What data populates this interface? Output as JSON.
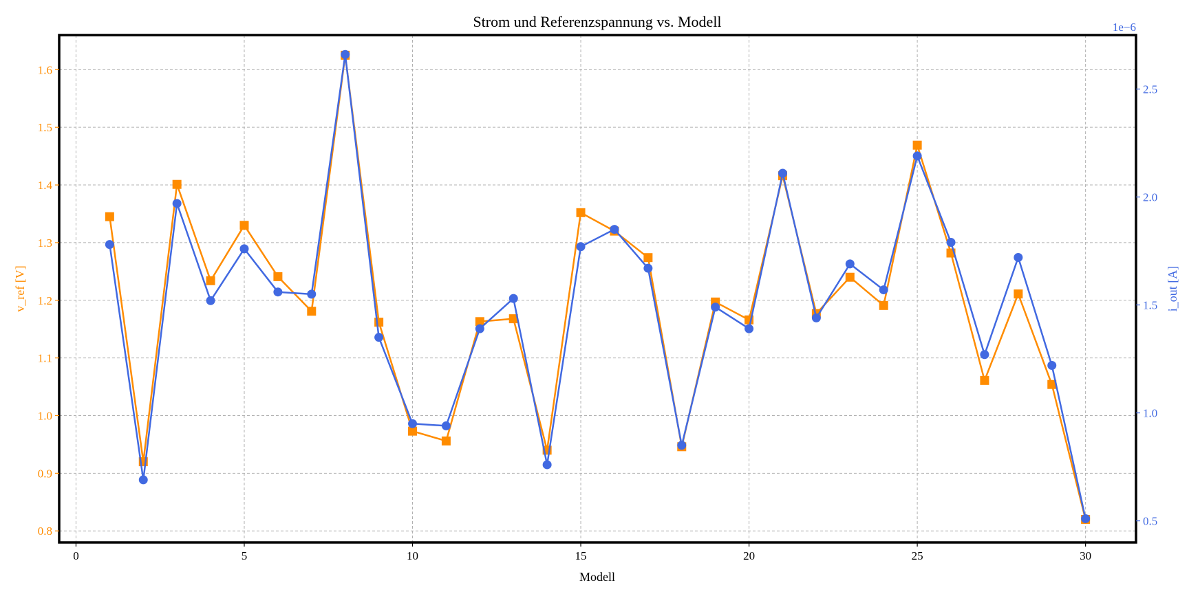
{
  "chart_data": {
    "type": "line",
    "title": "Strom und Referenzspannung vs. Modell",
    "xlabel": "Modell",
    "ylabel_left": "v_ref [V]",
    "ylabel_right": "i_out [A]",
    "right_axis_offset_label": "1e−6",
    "xlim": [
      -0.5,
      31.5
    ],
    "ylim_left": [
      0.78,
      1.66
    ],
    "ylim_right": [
      0.4,
      2.75
    ],
    "xticks": [
      0,
      5,
      10,
      15,
      20,
      25,
      30
    ],
    "yticks_left": [
      "0.8",
      "0.9",
      "1.0",
      "1.1",
      "1.2",
      "1.3",
      "1.4",
      "1.5",
      "1.6"
    ],
    "yticks_right": [
      "0.5",
      "1.0",
      "1.5",
      "2.0",
      "2.5"
    ],
    "grid": true,
    "x": [
      1,
      2,
      3,
      4,
      5,
      6,
      7,
      8,
      9,
      10,
      11,
      12,
      13,
      14,
      15,
      16,
      17,
      18,
      19,
      20,
      21,
      22,
      23,
      24,
      25,
      26,
      27,
      28,
      29,
      30
    ],
    "series": [
      {
        "axis": "left",
        "color": "#ff8c00",
        "marker": "square",
        "values": [
          1.345,
          0.92,
          1.401,
          1.234,
          1.33,
          1.241,
          1.181,
          1.625,
          1.162,
          0.973,
          0.956,
          1.163,
          1.168,
          0.94,
          1.352,
          1.32,
          1.274,
          0.946,
          1.197,
          1.166,
          1.416,
          1.177,
          1.24,
          1.191,
          1.469,
          1.282,
          1.061,
          1.211,
          1.054,
          0.82
        ]
      },
      {
        "axis": "right",
        "color": "#4169e1",
        "marker": "circle",
        "values": [
          1.78,
          0.69,
          1.97,
          1.52,
          1.76,
          1.56,
          1.55,
          2.66,
          1.35,
          0.95,
          0.94,
          1.39,
          1.53,
          0.76,
          1.77,
          1.85,
          1.67,
          0.85,
          1.49,
          1.39,
          2.11,
          1.44,
          1.69,
          1.57,
          2.19,
          1.79,
          1.27,
          1.72,
          1.22,
          0.51
        ]
      }
    ]
  }
}
